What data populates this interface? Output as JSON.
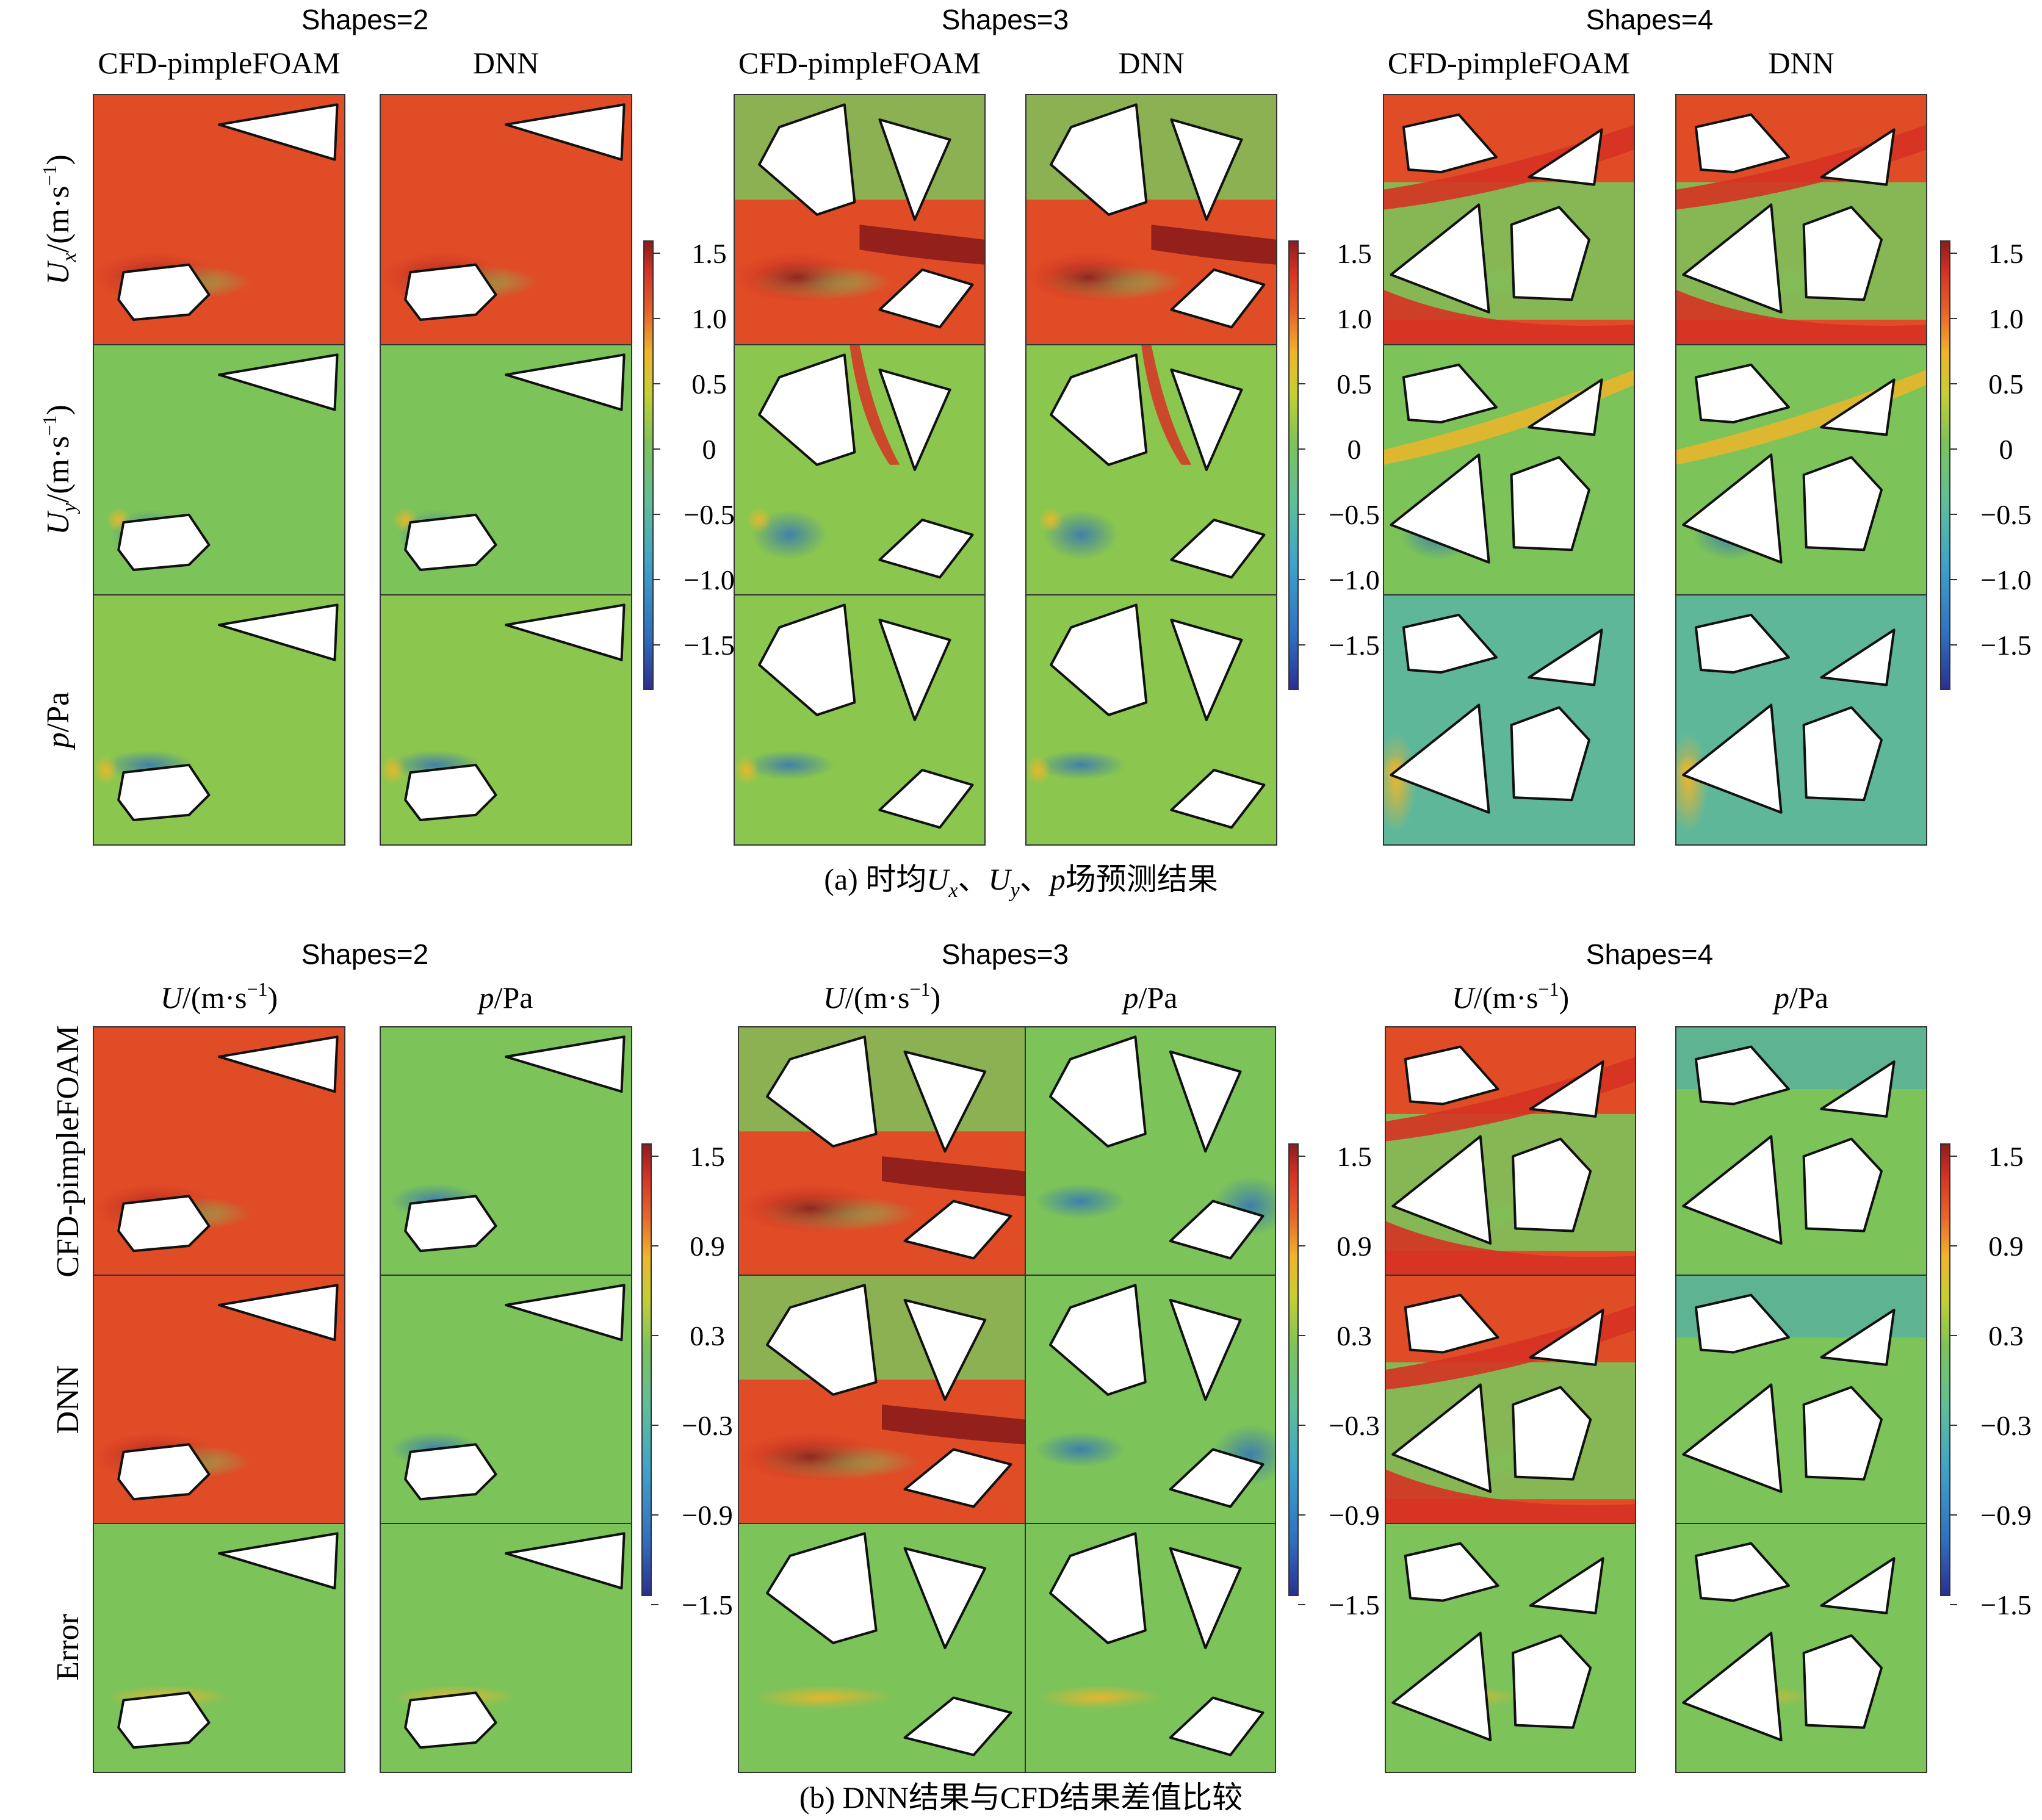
{
  "part_a": {
    "groups": [
      {
        "title": "Shapes=2",
        "cols": [
          "CFD-pimpleFOAM",
          "DNN"
        ]
      },
      {
        "title": "Shapes=3",
        "cols": [
          "CFD-pimpleFOAM",
          "DNN"
        ]
      },
      {
        "title": "Shapes=4",
        "cols": [
          "CFD-pimpleFOAM",
          "DNN"
        ]
      }
    ],
    "rows": [
      {
        "var": "U",
        "sub": "x",
        "unit": "/(m·s",
        "sup": "−1",
        "close": ")"
      },
      {
        "var": "U",
        "sub": "y",
        "unit": "/(m·s",
        "sup": "−1",
        "close": ")"
      },
      {
        "var": "p",
        "sub": "",
        "unit": "/Pa",
        "sup": "",
        "close": ""
      }
    ],
    "colorbar_ticks": [
      "1.5",
      "1.0",
      "0.5",
      "0",
      "−0.5",
      "−1.0",
      "−1.5"
    ],
    "caption": {
      "prefix": "(a) 时均",
      "u1": "U",
      "s1": "x",
      "sep1": "、",
      "u2": "U",
      "s2": "y",
      "sep2": "、",
      "p": "p",
      "suffix": "场预测结果"
    }
  },
  "part_b": {
    "groups": [
      {
        "title": "Shapes=2",
        "cols": [
          {
            "var": "U",
            "unit": "/(m·s",
            "sup": "−1",
            "close": ")"
          },
          {
            "var": "p",
            "unit": "/Pa",
            "sup": "",
            "close": ""
          }
        ]
      },
      {
        "title": "Shapes=3",
        "cols": [
          {
            "var": "U",
            "unit": "/(m·s",
            "sup": "−1",
            "close": ")"
          },
          {
            "var": "p",
            "unit": "/Pa",
            "sup": "",
            "close": ""
          }
        ]
      },
      {
        "title": "Shapes=4",
        "cols": [
          {
            "var": "U",
            "unit": "/(m·s",
            "sup": "−1",
            "close": ")"
          },
          {
            "var": "p",
            "unit": "/Pa",
            "sup": "",
            "close": ""
          }
        ]
      }
    ],
    "rows": [
      "CFD-pimpleFOAM",
      "DNN",
      "Error"
    ],
    "colorbar_ticks": [
      "1.5",
      "0.9",
      "0.3",
      "−0.3",
      "−0.9",
      "−1.5"
    ],
    "caption": "(b) DNN结果与CFD结果差值比较"
  },
  "colormap": [
    "#2b2f8f",
    "#2f6fc0",
    "#3fa3c9",
    "#5fbf98",
    "#7cc35a",
    "#c6cf32",
    "#f0b52a",
    "#e8652a",
    "#d63224",
    "#8c1c1c"
  ]
}
